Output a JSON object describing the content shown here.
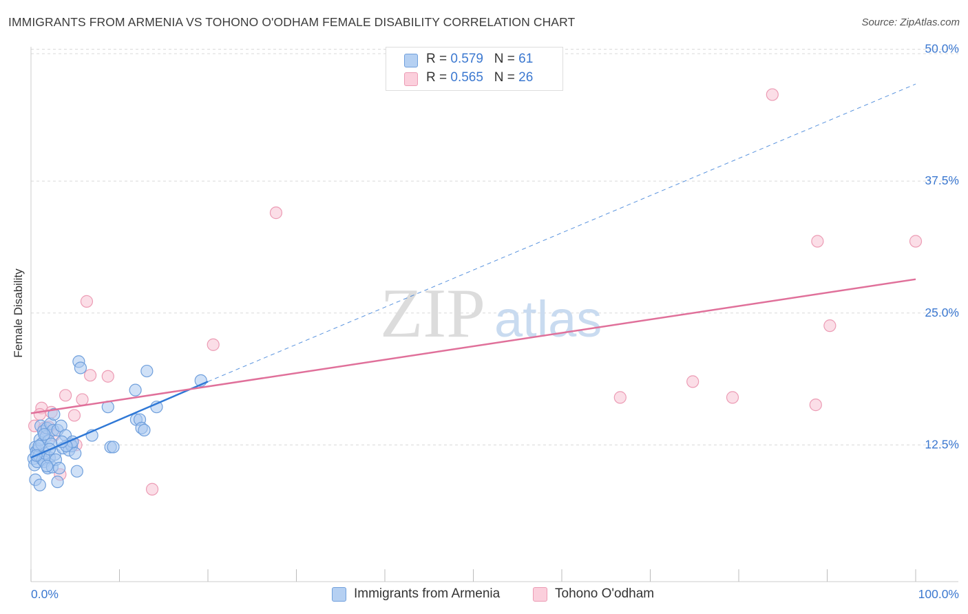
{
  "title": "IMMIGRANTS FROM ARMENIA VS TOHONO O'ODHAM FEMALE DISABILITY CORRELATION CHART",
  "source": "Source: ZipAtlas.com",
  "watermark": {
    "zip": "ZIP",
    "atlas": "atlas"
  },
  "colors": {
    "blue_fill": "#a9c9f0",
    "blue_stroke": "#6f9fdc",
    "blue_line": "#2f78d6",
    "pink_fill": "#f8c3d3",
    "pink_stroke": "#ec9bb4",
    "pink_line": "#e0709a",
    "tick_label": "#3b78d0",
    "grid": "#d9d9d9"
  },
  "legend_top": {
    "rows": [
      {
        "r_label": "R = ",
        "r_value": "0.579",
        "n_label": "N = ",
        "n_value": "61",
        "color": "blue"
      },
      {
        "r_label": "R = ",
        "r_value": "0.565",
        "n_label": "N = ",
        "n_value": "26",
        "color": "pink"
      }
    ]
  },
  "legend_bottom": {
    "items": [
      {
        "label": "Immigrants from Armenia",
        "color": "blue"
      },
      {
        "label": "Tohono O'odham",
        "color": "pink"
      }
    ]
  },
  "chart_data": {
    "type": "scatter",
    "title": "IMMIGRANTS FROM ARMENIA VS TOHONO O'ODHAM FEMALE DISABILITY CORRELATION CHART",
    "xlabel": "",
    "ylabel": "Female Disability",
    "xlim": [
      0,
      100
    ],
    "ylim": [
      0,
      52
    ],
    "x_tick_labels": [
      "0.0%",
      "100.0%"
    ],
    "y_ticks": [
      12.5,
      25.0,
      37.5,
      50.0
    ],
    "y_tick_labels": [
      "12.5%",
      "25.0%",
      "37.5%",
      "50.0%"
    ],
    "grid": true,
    "series": [
      {
        "name": "Immigrants from Armenia",
        "color": "blue",
        "trend": {
          "x0": 0,
          "y0": 11.3,
          "x1": 20,
          "y1": 18.5,
          "dashed_to_x": 100,
          "dashed_to_y": 46.7
        },
        "points": [
          [
            0.3,
            11.2
          ],
          [
            0.4,
            10.6
          ],
          [
            0.5,
            12.3
          ],
          [
            0.6,
            11.9
          ],
          [
            0.7,
            10.9
          ],
          [
            0.8,
            12.1
          ],
          [
            0.9,
            11.5
          ],
          [
            1.0,
            13.0
          ],
          [
            1.1,
            14.3
          ],
          [
            1.2,
            12.6
          ],
          [
            1.3,
            11.1
          ],
          [
            1.4,
            13.8
          ],
          [
            1.5,
            10.9
          ],
          [
            1.6,
            11.7
          ],
          [
            1.7,
            13.3
          ],
          [
            1.8,
            14.1
          ],
          [
            1.9,
            10.3
          ],
          [
            2.0,
            12.9
          ],
          [
            2.1,
            11.3
          ],
          [
            2.2,
            14.5
          ],
          [
            2.3,
            12.6
          ],
          [
            2.4,
            10.4
          ],
          [
            2.5,
            13.9
          ],
          [
            2.6,
            15.4
          ],
          [
            2.7,
            11.6
          ],
          [
            2.8,
            11.1
          ],
          [
            3.0,
            13.9
          ],
          [
            3.2,
            10.3
          ],
          [
            3.4,
            14.3
          ],
          [
            3.6,
            12.2
          ],
          [
            3.9,
            13.4
          ],
          [
            4.3,
            12.0
          ],
          [
            4.5,
            12.6
          ],
          [
            4.6,
            12.4
          ],
          [
            4.7,
            12.8
          ],
          [
            5.0,
            11.7
          ],
          [
            5.2,
            10.0
          ],
          [
            5.4,
            20.4
          ],
          [
            5.6,
            19.8
          ],
          [
            6.9,
            13.4
          ],
          [
            8.7,
            16.1
          ],
          [
            9.0,
            12.3
          ],
          [
            9.3,
            12.3
          ],
          [
            11.8,
            17.7
          ],
          [
            11.9,
            14.9
          ],
          [
            12.3,
            14.9
          ],
          [
            12.5,
            14.1
          ],
          [
            12.8,
            13.9
          ],
          [
            13.1,
            19.5
          ],
          [
            14.2,
            16.1
          ],
          [
            19.2,
            18.6
          ],
          [
            0.5,
            9.2
          ],
          [
            1.0,
            8.7
          ],
          [
            3.0,
            9.0
          ],
          [
            1.8,
            10.5
          ],
          [
            0.9,
            12.4
          ],
          [
            2.1,
            12.1
          ],
          [
            4.0,
            12.4
          ],
          [
            0.6,
            11.5
          ],
          [
            1.5,
            13.5
          ],
          [
            3.5,
            12.8
          ]
        ]
      },
      {
        "name": "Tohono O'odham",
        "color": "pink",
        "trend": {
          "x0": 0,
          "y0": 15.5,
          "x1": 100,
          "y1": 28.2
        },
        "points": [
          [
            0.4,
            14.3
          ],
          [
            1.2,
            16.0
          ],
          [
            1.5,
            14.1
          ],
          [
            2.3,
            15.6
          ],
          [
            2.6,
            13.4
          ],
          [
            3.3,
            9.7
          ],
          [
            3.9,
            17.2
          ],
          [
            4.9,
            15.3
          ],
          [
            5.1,
            12.5
          ],
          [
            5.8,
            16.8
          ],
          [
            6.3,
            26.1
          ],
          [
            6.7,
            19.1
          ],
          [
            8.7,
            19.0
          ],
          [
            13.7,
            8.3
          ],
          [
            20.6,
            22.0
          ],
          [
            27.7,
            34.5
          ],
          [
            66.6,
            17.0
          ],
          [
            74.8,
            18.5
          ],
          [
            79.3,
            17.0
          ],
          [
            83.8,
            45.7
          ],
          [
            88.7,
            16.3
          ],
          [
            88.9,
            31.8
          ],
          [
            90.3,
            23.8
          ],
          [
            100.0,
            31.8
          ],
          [
            2.0,
            14.2
          ],
          [
            1.0,
            15.4
          ]
        ]
      }
    ]
  }
}
